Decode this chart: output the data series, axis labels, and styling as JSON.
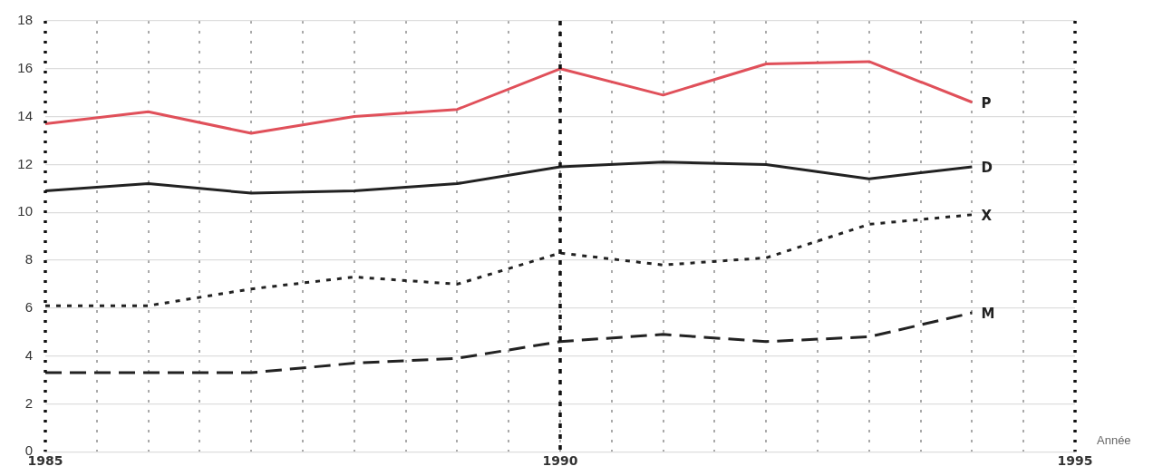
{
  "chart_data": {
    "type": "line",
    "xlabel": "Année",
    "x": [
      1985,
      1986,
      1987,
      1988,
      1989,
      1990,
      1991,
      1992,
      1993,
      1994
    ],
    "series": [
      {
        "name": "P",
        "color": "#e0505a",
        "line_style": "solid",
        "values": [
          13.7,
          14.2,
          13.3,
          14.0,
          14.3,
          16.0,
          14.9,
          16.2,
          16.3,
          14.6
        ]
      },
      {
        "name": "D",
        "color": "#222222",
        "line_style": "solid",
        "values": [
          10.9,
          11.2,
          10.8,
          10.9,
          11.2,
          11.9,
          12.1,
          12.0,
          11.4,
          11.9
        ]
      },
      {
        "name": "X",
        "color": "#222222",
        "line_style": "dotted",
        "values": [
          6.1,
          6.1,
          6.8,
          7.3,
          7.0,
          8.3,
          7.8,
          8.1,
          9.5,
          9.9
        ]
      },
      {
        "name": "M",
        "color": "#222222",
        "line_style": "dashed",
        "values": [
          3.3,
          3.3,
          3.3,
          3.7,
          3.9,
          4.6,
          4.9,
          4.6,
          4.8,
          5.8
        ]
      }
    ],
    "xlim": [
      1985,
      1995
    ],
    "xticks": [
      1985,
      {
        "value": 1985.5,
        "label": null
      },
      {
        "value": 1986,
        "label": null
      },
      {
        "value": 1986.5,
        "label": null
      },
      {
        "value": 1987,
        "label": null
      },
      {
        "value": 1987.5,
        "label": null
      },
      {
        "value": 1988,
        "label": null
      },
      {
        "value": 1988.5,
        "label": null
      },
      {
        "value": 1989,
        "label": null
      },
      {
        "value": 1989.5,
        "label": null
      },
      1990,
      {
        "value": 1990.5,
        "label": null
      },
      {
        "value": 1991,
        "label": null
      },
      {
        "value": 1991.5,
        "label": null
      },
      {
        "value": 1992,
        "label": null
      },
      {
        "value": 1992.5,
        "label": null
      },
      {
        "value": 1993,
        "label": null
      },
      {
        "value": 1993.5,
        "label": null
      },
      {
        "value": 1994,
        "label": null
      },
      {
        "value": 1994.5,
        "label": null
      },
      1995
    ],
    "ylim": [
      0,
      18
    ],
    "yticks": [
      0,
      2,
      4,
      6,
      8,
      10,
      12,
      14,
      16,
      18
    ],
    "ref_lines": [
      {
        "axis": "x",
        "value": 1990,
        "color": "#111111",
        "line_style": "dotted"
      }
    ],
    "grid": true,
    "legend": false,
    "marker": "none"
  }
}
